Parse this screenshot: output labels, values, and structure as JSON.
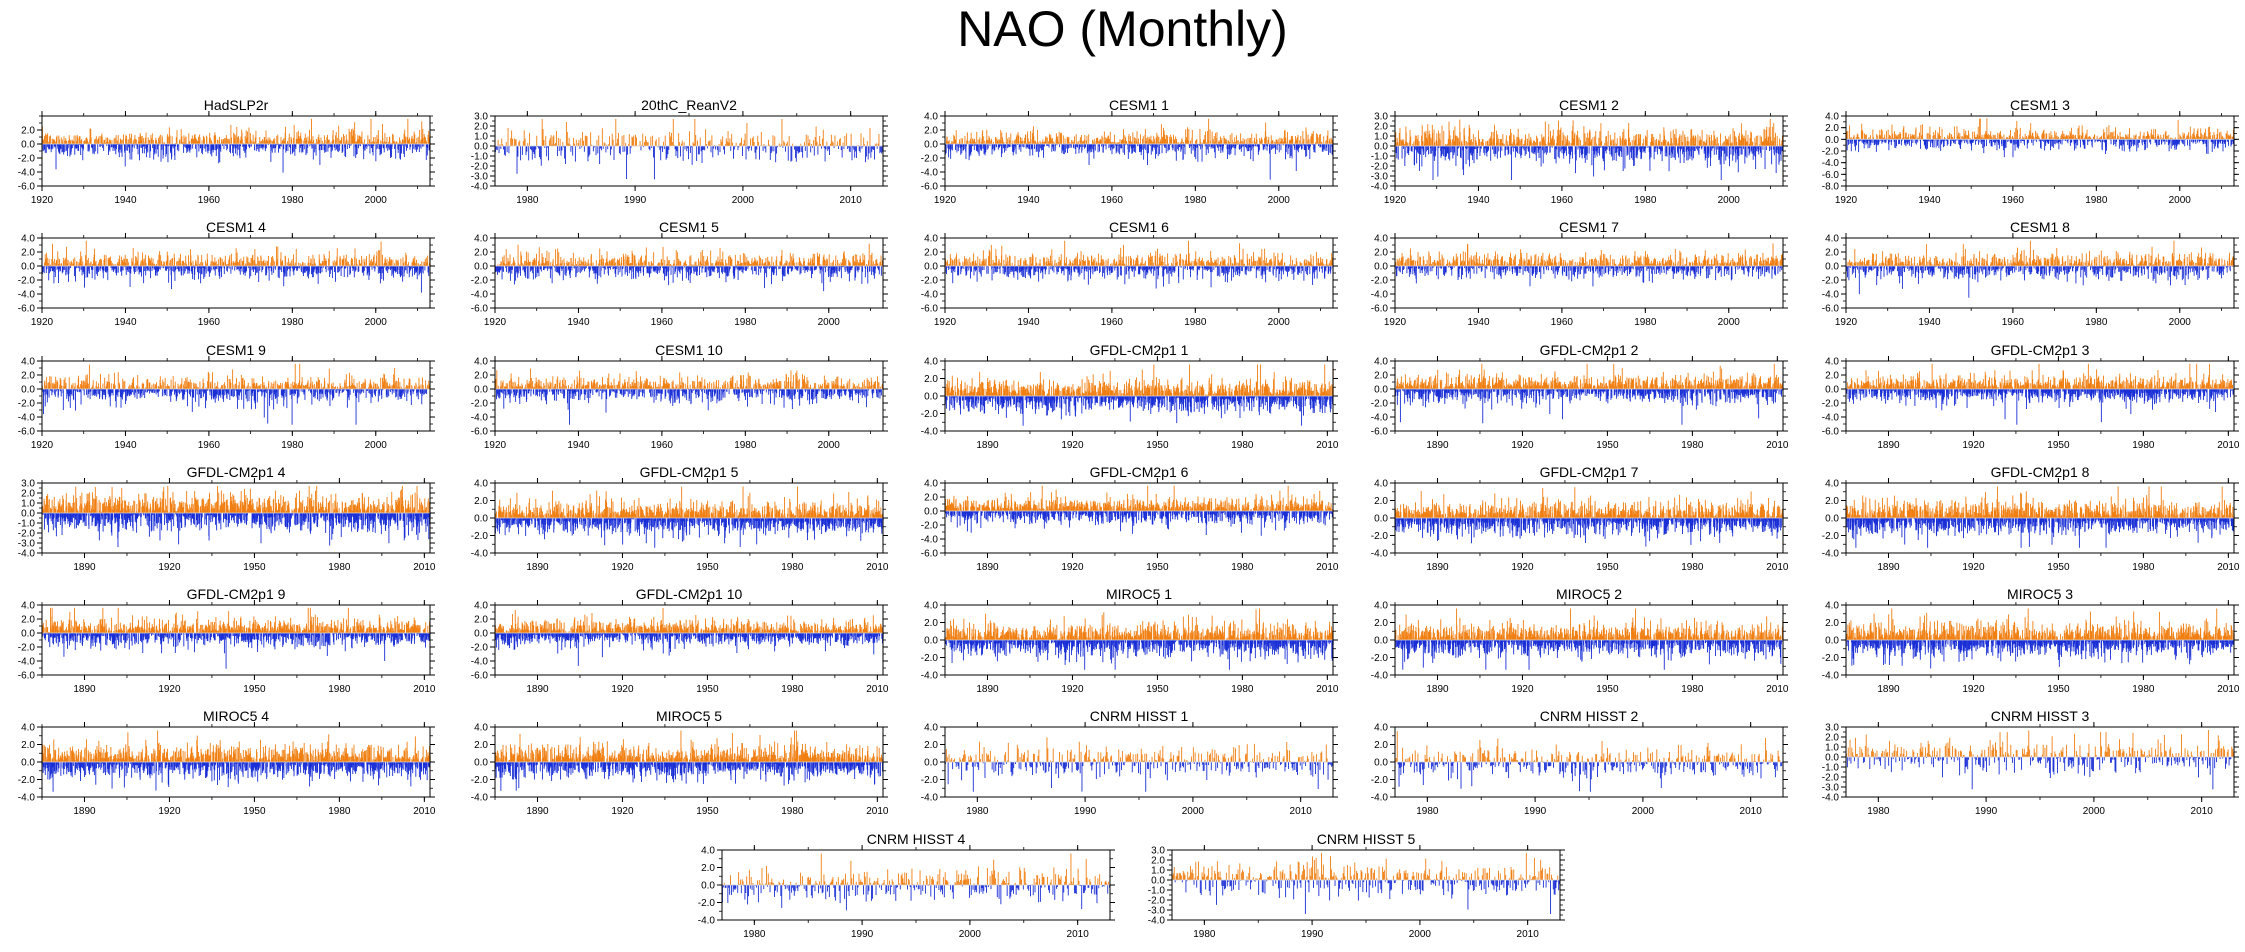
{
  "title": "NAO (Monthly)",
  "colors": {
    "positive": "#f07f12",
    "negative": "#1a2fd6",
    "zero_line": "#d6d6d6",
    "axis": "#000000"
  },
  "chart_data": [
    {
      "type": "bar",
      "title": "HadSLP2r",
      "x_range": [
        1920,
        2013
      ],
      "x_ticks": [
        1920,
        1940,
        1960,
        1980,
        2000
      ],
      "y_ticks": [
        2.0,
        0.0,
        -2.0,
        -4.0,
        -6.0
      ],
      "ylim": [
        -6.0,
        4.0
      ]
    },
    {
      "type": "bar",
      "title": "20thC_ReanV2",
      "x_range": [
        1977,
        2013
      ],
      "x_ticks": [
        1980,
        1990,
        2000,
        2010
      ],
      "y_ticks": [
        3.0,
        2.0,
        1.0,
        0.0,
        -1.0,
        -2.0,
        -3.0,
        -4.0
      ],
      "ylim": [
        -4.0,
        3.0
      ]
    },
    {
      "type": "bar",
      "title": "CESM1 1",
      "x_range": [
        1920,
        2013
      ],
      "x_ticks": [
        1920,
        1940,
        1960,
        1980,
        2000
      ],
      "y_ticks": [
        4.0,
        2.0,
        0.0,
        -2.0,
        -4.0,
        -6.0
      ],
      "ylim": [
        -6.0,
        4.0
      ]
    },
    {
      "type": "bar",
      "title": "CESM1 2",
      "x_range": [
        1920,
        2013
      ],
      "x_ticks": [
        1920,
        1940,
        1960,
        1980,
        2000
      ],
      "y_ticks": [
        3.0,
        2.0,
        1.0,
        0.0,
        -1.0,
        -2.0,
        -3.0,
        -4.0
      ],
      "ylim": [
        -4.0,
        3.0
      ]
    },
    {
      "type": "bar",
      "title": "CESM1 3",
      "x_range": [
        1920,
        2013
      ],
      "x_ticks": [
        1920,
        1940,
        1960,
        1980,
        2000
      ],
      "y_ticks": [
        4.0,
        2.0,
        0.0,
        -2.0,
        -4.0,
        -6.0,
        -8.0
      ],
      "ylim": [
        -8.0,
        4.0
      ]
    },
    {
      "type": "bar",
      "title": "CESM1 4",
      "x_range": [
        1920,
        2013
      ],
      "x_ticks": [
        1920,
        1940,
        1960,
        1980,
        2000
      ],
      "y_ticks": [
        4.0,
        2.0,
        0.0,
        -2.0,
        -4.0,
        -6.0
      ],
      "ylim": [
        -6.0,
        4.0
      ]
    },
    {
      "type": "bar",
      "title": "CESM1 5",
      "x_range": [
        1920,
        2013
      ],
      "x_ticks": [
        1920,
        1940,
        1960,
        1980,
        2000
      ],
      "y_ticks": [
        4.0,
        2.0,
        0.0,
        -2.0,
        -4.0,
        -6.0
      ],
      "ylim": [
        -6.0,
        4.0
      ]
    },
    {
      "type": "bar",
      "title": "CESM1 6",
      "x_range": [
        1920,
        2013
      ],
      "x_ticks": [
        1920,
        1940,
        1960,
        1980,
        2000
      ],
      "y_ticks": [
        4.0,
        2.0,
        0.0,
        -2.0,
        -4.0,
        -6.0
      ],
      "ylim": [
        -6.0,
        4.0
      ]
    },
    {
      "type": "bar",
      "title": "CESM1 7",
      "x_range": [
        1920,
        2013
      ],
      "x_ticks": [
        1920,
        1940,
        1960,
        1980,
        2000
      ],
      "y_ticks": [
        4.0,
        2.0,
        0.0,
        -2.0,
        -4.0,
        -6.0
      ],
      "ylim": [
        -6.0,
        4.0
      ]
    },
    {
      "type": "bar",
      "title": "CESM1 8",
      "x_range": [
        1920,
        2013
      ],
      "x_ticks": [
        1920,
        1940,
        1960,
        1980,
        2000
      ],
      "y_ticks": [
        4.0,
        2.0,
        0.0,
        -2.0,
        -4.0,
        -6.0
      ],
      "ylim": [
        -6.0,
        4.0
      ]
    },
    {
      "type": "bar",
      "title": "CESM1 9",
      "x_range": [
        1920,
        2013
      ],
      "x_ticks": [
        1920,
        1940,
        1960,
        1980,
        2000
      ],
      "y_ticks": [
        4.0,
        2.0,
        0.0,
        -2.0,
        -4.0,
        -6.0
      ],
      "ylim": [
        -6.0,
        4.0
      ]
    },
    {
      "type": "bar",
      "title": "CESM1 10",
      "x_range": [
        1920,
        2013
      ],
      "x_ticks": [
        1920,
        1940,
        1960,
        1980,
        2000
      ],
      "y_ticks": [
        4.0,
        2.0,
        0.0,
        -2.0,
        -4.0,
        -6.0
      ],
      "ylim": [
        -6.0,
        4.0
      ]
    },
    {
      "type": "bar",
      "title": "GFDL-CM2p1 1",
      "x_range": [
        1875,
        2012
      ],
      "x_ticks": [
        1890,
        1920,
        1950,
        1980,
        2010
      ],
      "y_ticks": [
        4.0,
        2.0,
        0.0,
        -2.0,
        -4.0
      ],
      "ylim": [
        -4.0,
        4.0
      ]
    },
    {
      "type": "bar",
      "title": "GFDL-CM2p1 2",
      "x_range": [
        1875,
        2012
      ],
      "x_ticks": [
        1890,
        1920,
        1950,
        1980,
        2010
      ],
      "y_ticks": [
        4.0,
        2.0,
        0.0,
        -2.0,
        -4.0,
        -6.0
      ],
      "ylim": [
        -6.0,
        4.0
      ]
    },
    {
      "type": "bar",
      "title": "GFDL-CM2p1 3",
      "x_range": [
        1875,
        2012
      ],
      "x_ticks": [
        1890,
        1920,
        1950,
        1980,
        2010
      ],
      "y_ticks": [
        4.0,
        2.0,
        0.0,
        -2.0,
        -4.0,
        -6.0
      ],
      "ylim": [
        -6.0,
        4.0
      ]
    },
    {
      "type": "bar",
      "title": "GFDL-CM2p1 4",
      "x_range": [
        1875,
        2012
      ],
      "x_ticks": [
        1890,
        1920,
        1950,
        1980,
        2010
      ],
      "y_ticks": [
        3.0,
        2.0,
        1.0,
        0.0,
        -1.0,
        -2.0,
        -3.0,
        -4.0
      ],
      "ylim": [
        -4.0,
        3.0
      ]
    },
    {
      "type": "bar",
      "title": "GFDL-CM2p1 5",
      "x_range": [
        1875,
        2012
      ],
      "x_ticks": [
        1890,
        1920,
        1950,
        1980,
        2010
      ],
      "y_ticks": [
        4.0,
        2.0,
        0.0,
        -2.0,
        -4.0
      ],
      "ylim": [
        -4.0,
        4.0
      ]
    },
    {
      "type": "bar",
      "title": "GFDL-CM2p1 6",
      "x_range": [
        1875,
        2012
      ],
      "x_ticks": [
        1890,
        1920,
        1950,
        1980,
        2010
      ],
      "y_ticks": [
        4.0,
        2.0,
        0.0,
        -2.0,
        -4.0,
        -6.0
      ],
      "ylim": [
        -6.0,
        4.0
      ]
    },
    {
      "type": "bar",
      "title": "GFDL-CM2p1 7",
      "x_range": [
        1875,
        2012
      ],
      "x_ticks": [
        1890,
        1920,
        1950,
        1980,
        2010
      ],
      "y_ticks": [
        4.0,
        2.0,
        0.0,
        -2.0,
        -4.0
      ],
      "ylim": [
        -4.0,
        4.0
      ]
    },
    {
      "type": "bar",
      "title": "GFDL-CM2p1 8",
      "x_range": [
        1875,
        2012
      ],
      "x_ticks": [
        1890,
        1920,
        1950,
        1980,
        2010
      ],
      "y_ticks": [
        4.0,
        2.0,
        0.0,
        -2.0,
        -4.0
      ],
      "ylim": [
        -4.0,
        4.0
      ]
    },
    {
      "type": "bar",
      "title": "GFDL-CM2p1 9",
      "x_range": [
        1875,
        2012
      ],
      "x_ticks": [
        1890,
        1920,
        1950,
        1980,
        2010
      ],
      "y_ticks": [
        4.0,
        2.0,
        0.0,
        -2.0,
        -4.0,
        -6.0
      ],
      "ylim": [
        -6.0,
        4.0
      ]
    },
    {
      "type": "bar",
      "title": "GFDL-CM2p1 10",
      "x_range": [
        1875,
        2012
      ],
      "x_ticks": [
        1890,
        1920,
        1950,
        1980,
        2010
      ],
      "y_ticks": [
        4.0,
        2.0,
        0.0,
        -2.0,
        -4.0,
        -6.0
      ],
      "ylim": [
        -6.0,
        4.0
      ]
    },
    {
      "type": "bar",
      "title": "MIROC5 1",
      "x_range": [
        1875,
        2012
      ],
      "x_ticks": [
        1890,
        1920,
        1950,
        1980,
        2010
      ],
      "y_ticks": [
        4.0,
        2.0,
        0.0,
        -2.0,
        -4.0
      ],
      "ylim": [
        -4.0,
        4.0
      ]
    },
    {
      "type": "bar",
      "title": "MIROC5 2",
      "x_range": [
        1875,
        2012
      ],
      "x_ticks": [
        1890,
        1920,
        1950,
        1980,
        2010
      ],
      "y_ticks": [
        4.0,
        2.0,
        0.0,
        -2.0,
        -4.0
      ],
      "ylim": [
        -4.0,
        4.0
      ]
    },
    {
      "type": "bar",
      "title": "MIROC5 3",
      "x_range": [
        1875,
        2012
      ],
      "x_ticks": [
        1890,
        1920,
        1950,
        1980,
        2010
      ],
      "y_ticks": [
        4.0,
        2.0,
        0.0,
        -2.0,
        -4.0
      ],
      "ylim": [
        -4.0,
        4.0
      ]
    },
    {
      "type": "bar",
      "title": "MIROC5 4",
      "x_range": [
        1875,
        2012
      ],
      "x_ticks": [
        1890,
        1920,
        1950,
        1980,
        2010
      ],
      "y_ticks": [
        4.0,
        2.0,
        0.0,
        -2.0,
        -4.0
      ],
      "ylim": [
        -4.0,
        4.0
      ]
    },
    {
      "type": "bar",
      "title": "MIROC5 5",
      "x_range": [
        1875,
        2012
      ],
      "x_ticks": [
        1890,
        1920,
        1950,
        1980,
        2010
      ],
      "y_ticks": [
        4.0,
        2.0,
        0.0,
        -2.0,
        -4.0
      ],
      "ylim": [
        -4.0,
        4.0
      ]
    },
    {
      "type": "bar",
      "title": "CNRM HISST 1",
      "x_range": [
        1977,
        2013
      ],
      "x_ticks": [
        1980,
        1990,
        2000,
        2010
      ],
      "y_ticks": [
        4.0,
        2.0,
        0.0,
        -2.0,
        -4.0
      ],
      "ylim": [
        -4.0,
        4.0
      ]
    },
    {
      "type": "bar",
      "title": "CNRM HISST 2",
      "x_range": [
        1977,
        2013
      ],
      "x_ticks": [
        1980,
        1990,
        2000,
        2010
      ],
      "y_ticks": [
        4.0,
        2.0,
        0.0,
        -2.0,
        -4.0
      ],
      "ylim": [
        -4.0,
        4.0
      ]
    },
    {
      "type": "bar",
      "title": "CNRM HISST 3",
      "x_range": [
        1977,
        2013
      ],
      "x_ticks": [
        1980,
        1990,
        2000,
        2010
      ],
      "y_ticks": [
        3.0,
        2.0,
        1.0,
        0.0,
        -1.0,
        -2.0,
        -3.0,
        -4.0
      ],
      "ylim": [
        -4.0,
        3.0
      ]
    },
    {
      "type": "bar",
      "title": "CNRM HISST 4",
      "x_range": [
        1977,
        2013
      ],
      "x_ticks": [
        1980,
        1990,
        2000,
        2010
      ],
      "y_ticks": [
        4.0,
        2.0,
        0.0,
        -2.0,
        -4.0
      ],
      "ylim": [
        -4.0,
        4.0
      ]
    },
    {
      "type": "bar",
      "title": "CNRM HISST 5",
      "x_range": [
        1977,
        2013
      ],
      "x_ticks": [
        1980,
        1990,
        2000,
        2010
      ],
      "y_ticks": [
        3.0,
        2.0,
        1.0,
        0.0,
        -1.0,
        -2.0,
        -3.0,
        -4.0
      ],
      "ylim": [
        -4.0,
        3.0
      ]
    }
  ]
}
